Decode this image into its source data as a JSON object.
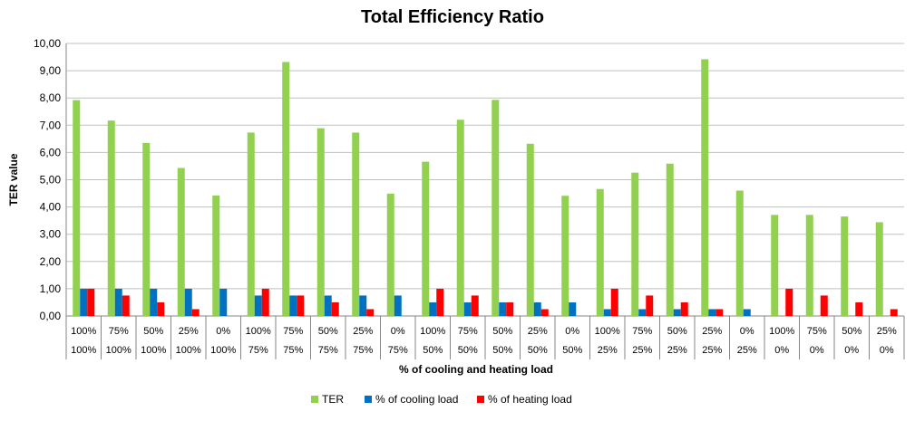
{
  "chart_data": {
    "type": "bar",
    "title": "Total Efficiency Ratio",
    "xlabel": "% of cooling and heating load",
    "ylabel": "TER value",
    "ylim": [
      0,
      10
    ],
    "y_ticks": [
      "0,00",
      "1,00",
      "2,00",
      "3,00",
      "4,00",
      "5,00",
      "6,00",
      "7,00",
      "8,00",
      "9,00",
      "10,00"
    ],
    "grid": true,
    "legend_position": "bottom",
    "categories_row1": [
      "100%",
      "75%",
      "50%",
      "25%",
      "0%",
      "100%",
      "75%",
      "50%",
      "25%",
      "0%",
      "100%",
      "75%",
      "50%",
      "25%",
      "0%",
      "100%",
      "75%",
      "50%",
      "25%",
      "0%",
      "100%",
      "75%",
      "50%",
      "25%"
    ],
    "categories_row2": [
      "100%",
      "100%",
      "100%",
      "100%",
      "100%",
      "75%",
      "75%",
      "75%",
      "75%",
      "75%",
      "50%",
      "50%",
      "50%",
      "50%",
      "50%",
      "25%",
      "25%",
      "25%",
      "25%",
      "25%",
      "0%",
      "0%",
      "0%",
      "0%"
    ],
    "series": [
      {
        "name": "TER",
        "color": "#92d050",
        "values": [
          7.92,
          7.17,
          6.35,
          5.43,
          4.42,
          6.73,
          9.32,
          6.89,
          6.73,
          4.49,
          5.66,
          7.2,
          7.93,
          6.32,
          4.41,
          4.66,
          5.26,
          5.59,
          9.42,
          4.6,
          3.71,
          3.71,
          3.65,
          3.44
        ]
      },
      {
        "name": "% of cooling load",
        "color": "#0070c0",
        "values": [
          1,
          1,
          1,
          1,
          1,
          0.75,
          0.75,
          0.75,
          0.75,
          0.75,
          0.5,
          0.5,
          0.5,
          0.5,
          0.5,
          0.25,
          0.25,
          0.25,
          0.25,
          0.25,
          0,
          0,
          0,
          0
        ]
      },
      {
        "name": "% of heating load",
        "color": "#ff0000",
        "values": [
          1,
          0.75,
          0.5,
          0.25,
          0,
          1,
          0.75,
          0.5,
          0.25,
          0,
          1,
          0.75,
          0.5,
          0.25,
          0,
          1,
          0.75,
          0.5,
          0.25,
          0,
          1,
          0.75,
          0.5,
          0.25
        ]
      }
    ]
  }
}
